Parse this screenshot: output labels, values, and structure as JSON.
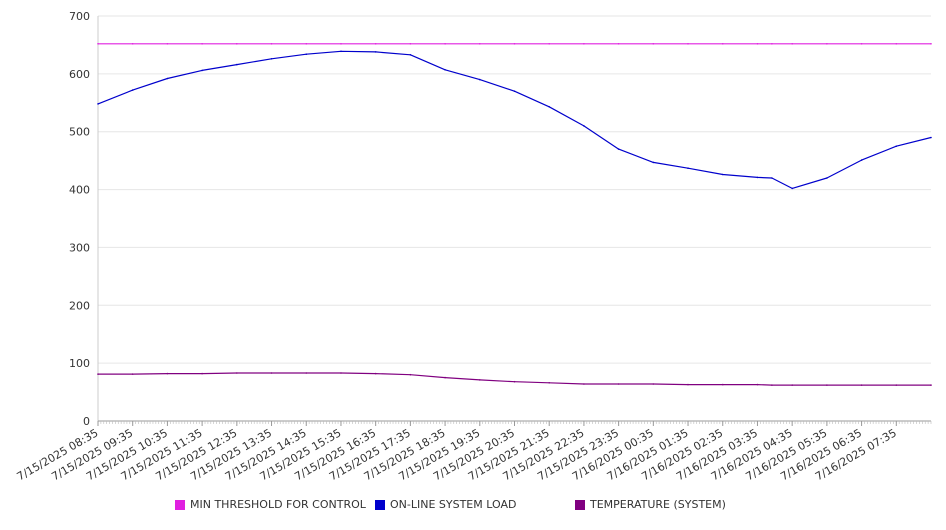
{
  "chart_data": {
    "type": "line",
    "title": "",
    "xlabel": "",
    "ylabel": "",
    "ylim": [
      0,
      700
    ],
    "yticks": [
      0,
      100,
      200,
      300,
      400,
      500,
      600,
      700
    ],
    "grid": true,
    "legend_position": "bottom",
    "x_tick_labels": [
      "7/15/2025 08:35",
      "7/15/2025 09:35",
      "7/15/2025 10:35",
      "7/15/2025 11:35",
      "7/15/2025 12:35",
      "7/15/2025 13:35",
      "7/15/2025 14:35",
      "7/15/2025 15:35",
      "7/15/2025 16:35",
      "7/15/2025 17:35",
      "7/15/2025 18:35",
      "7/15/2025 19:35",
      "7/15/2025 20:35",
      "7/15/2025 21:35",
      "7/15/2025 22:35",
      "7/15/2025 23:35",
      "7/16/2025 00:35",
      "7/16/2025 01:35",
      "7/16/2025 02:35",
      "7/16/2025 03:35",
      "7/16/2025 04:35",
      "7/16/2025 05:35",
      "7/16/2025 06:35",
      "7/16/2025 07:35"
    ],
    "x": [
      "7/15/2025 08:35",
      "7/15/2025 09:35",
      "7/15/2025 10:35",
      "7/15/2025 11:35",
      "7/15/2025 12:35",
      "7/15/2025 13:35",
      "7/15/2025 14:35",
      "7/15/2025 15:35",
      "7/15/2025 16:35",
      "7/15/2025 17:35",
      "7/15/2025 18:35",
      "7/15/2025 19:35",
      "7/15/2025 20:35",
      "7/15/2025 21:35",
      "7/15/2025 22:35",
      "7/15/2025 23:35",
      "7/16/2025 00:35",
      "7/16/2025 01:35",
      "7/16/2025 02:35",
      "7/16/2025 03:35",
      "7/16/2025 04:00",
      "7/16/2025 04:35",
      "7/16/2025 05:35",
      "7/16/2025 06:35",
      "7/16/2025 07:35",
      "7/16/2025 08:35"
    ],
    "series": [
      {
        "name": "MIN THRESHOLD FOR CONTROL",
        "color": "#e020e0",
        "values": [
          652,
          652,
          652,
          652,
          652,
          652,
          652,
          652,
          652,
          652,
          652,
          652,
          652,
          652,
          652,
          652,
          652,
          652,
          652,
          652,
          652,
          652,
          652,
          652,
          652,
          652
        ]
      },
      {
        "name": "ON-LINE SYSTEM LOAD",
        "color": "#0000cc",
        "values": [
          548,
          572,
          592,
          606,
          616,
          626,
          634,
          639,
          638,
          633,
          607,
          590,
          570,
          543,
          510,
          470,
          447,
          437,
          426,
          421,
          420,
          402,
          420,
          451,
          475,
          490
        ]
      },
      {
        "name": "TEMPERATURE (SYSTEM)",
        "color": "#800080",
        "values": [
          81,
          81,
          82,
          82,
          83,
          83,
          83,
          83,
          82,
          80,
          75,
          71,
          68,
          66,
          64,
          64,
          64,
          63,
          63,
          63,
          62,
          62,
          62,
          62,
          62,
          62
        ]
      }
    ]
  }
}
